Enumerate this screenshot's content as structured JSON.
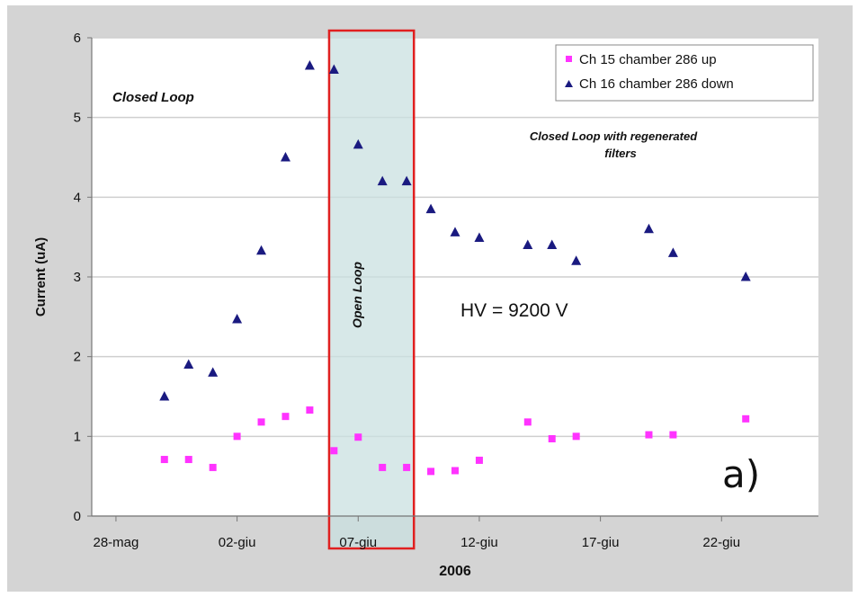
{
  "chart_data": {
    "type": "scatter",
    "xlabel": "2006",
    "ylabel": "Current (uA)",
    "ylim": [
      0,
      6
    ],
    "yticks": [
      "0",
      "1",
      "2",
      "3",
      "4",
      "5",
      "6"
    ],
    "xlim": [
      "2006-05-27",
      "2006-06-26"
    ],
    "xticks": [
      {
        "label": "28-mag",
        "date": "2006-05-28"
      },
      {
        "label": "02-giu",
        "date": "2006-06-02"
      },
      {
        "label": "07-giu",
        "date": "2006-06-07"
      },
      {
        "label": "12-giu",
        "date": "2006-06-12"
      },
      {
        "label": "17-giu",
        "date": "2006-06-17"
      },
      {
        "label": "22-giu",
        "date": "2006-06-22"
      }
    ],
    "grid": true,
    "legend_position": "top-right",
    "series": [
      {
        "name": "Ch 15 chamber 286 up",
        "marker": "square",
        "color": "#ff33ff",
        "points": [
          {
            "x": "2006-05-30",
            "y": 0.71
          },
          {
            "x": "2006-05-31",
            "y": 0.71
          },
          {
            "x": "2006-06-01",
            "y": 0.61
          },
          {
            "x": "2006-06-02",
            "y": 1.0
          },
          {
            "x": "2006-06-03",
            "y": 1.18
          },
          {
            "x": "2006-06-04",
            "y": 1.25
          },
          {
            "x": "2006-06-05",
            "y": 1.33
          },
          {
            "x": "2006-06-06",
            "y": 0.82
          },
          {
            "x": "2006-06-07",
            "y": 0.99
          },
          {
            "x": "2006-06-08",
            "y": 0.61
          },
          {
            "x": "2006-06-09",
            "y": 0.61
          },
          {
            "x": "2006-06-10",
            "y": 0.56
          },
          {
            "x": "2006-06-11",
            "y": 0.57
          },
          {
            "x": "2006-06-12",
            "y": 0.7
          },
          {
            "x": "2006-06-14",
            "y": 1.18
          },
          {
            "x": "2006-06-15",
            "y": 0.97
          },
          {
            "x": "2006-06-16",
            "y": 1.0
          },
          {
            "x": "2006-06-19",
            "y": 1.02
          },
          {
            "x": "2006-06-20",
            "y": 1.02
          },
          {
            "x": "2006-06-23",
            "y": 1.22
          }
        ]
      },
      {
        "name": "Ch 16 chamber 286 down",
        "marker": "triangle",
        "color": "#1a1a80",
        "points": [
          {
            "x": "2006-05-30",
            "y": 1.5
          },
          {
            "x": "2006-05-31",
            "y": 1.9
          },
          {
            "x": "2006-06-01",
            "y": 1.8
          },
          {
            "x": "2006-06-02",
            "y": 2.47
          },
          {
            "x": "2006-06-03",
            "y": 3.33
          },
          {
            "x": "2006-06-04",
            "y": 4.5
          },
          {
            "x": "2006-06-05",
            "y": 5.65
          },
          {
            "x": "2006-06-06",
            "y": 5.6
          },
          {
            "x": "2006-06-07",
            "y": 4.66
          },
          {
            "x": "2006-06-08",
            "y": 4.2
          },
          {
            "x": "2006-06-09",
            "y": 4.2
          },
          {
            "x": "2006-06-10",
            "y": 3.85
          },
          {
            "x": "2006-06-11",
            "y": 3.56
          },
          {
            "x": "2006-06-12",
            "y": 3.49
          },
          {
            "x": "2006-06-14",
            "y": 3.4
          },
          {
            "x": "2006-06-15",
            "y": 3.4
          },
          {
            "x": "2006-06-16",
            "y": 3.2
          },
          {
            "x": "2006-06-19",
            "y": 3.6
          },
          {
            "x": "2006-06-20",
            "y": 3.3
          },
          {
            "x": "2006-06-23",
            "y": 3.0
          }
        ]
      }
    ],
    "open_loop_period": {
      "start": "2006-06-05.8",
      "end": "2006-06-09.3",
      "label": "Open Loop",
      "fill": "#c9e0e0",
      "border": "#e02020"
    },
    "annotations": {
      "closed_loop": "Closed Loop",
      "closed_loop_regen_line1": "Closed Loop with regenerated",
      "closed_loop_regen_line2": "filters",
      "hv": "HV = 9200 V",
      "panel_label": "a)"
    }
  },
  "colors": {
    "outer_panel": "#d4d4d4",
    "plot_background": "#ffffff",
    "gridline": "#cfcfcf"
  }
}
